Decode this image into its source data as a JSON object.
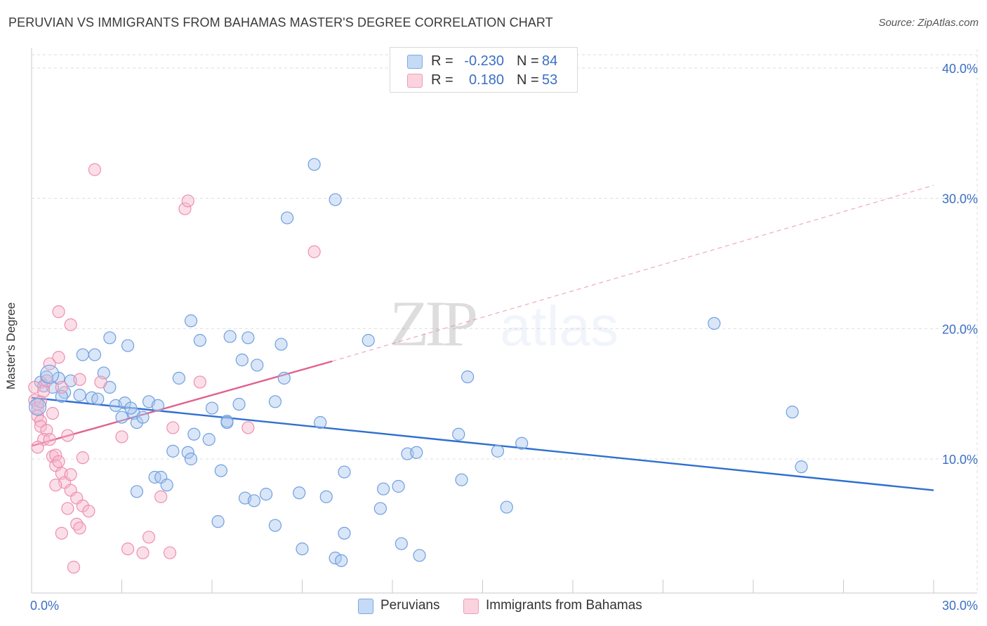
{
  "header": {
    "title": "PERUVIAN VS IMMIGRANTS FROM BAHAMAS MASTER'S DEGREE CORRELATION CHART",
    "source": "Source: ZipAtlas.com"
  },
  "legend": {
    "rows": [
      {
        "r_label": "R =",
        "r_value": "-0.230",
        "n_label": "N =",
        "n_value": "84",
        "color": "#aac8f0"
      },
      {
        "r_label": "R =",
        "r_value": "0.180",
        "n_label": "N =",
        "n_value": "53",
        "color": "#f7b8cb"
      }
    ]
  },
  "bottom_legend": {
    "items": [
      {
        "label": "Peruvians",
        "color": "#aac8f0"
      },
      {
        "label": "Immigrants from Bahamas",
        "color": "#f7b8cb"
      }
    ]
  },
  "watermark": {
    "zip": "ZIP",
    "atlas": "atlas"
  },
  "chart_data": {
    "type": "scatter",
    "title": "PERUVIAN VS IMMIGRANTS FROM BAHAMAS MASTER'S DEGREE CORRELATION CHART",
    "xlabel": "",
    "ylabel": "Master's Degree",
    "xlim": [
      0,
      30
    ],
    "ylim": [
      0,
      40
    ],
    "x_tick_labels": [
      {
        "value": 0,
        "label": "0.0%"
      },
      {
        "value": 30,
        "label": "30.0%"
      }
    ],
    "y_tick_labels": [
      {
        "value": 10,
        "label": "10.0%"
      },
      {
        "value": 20,
        "label": "20.0%"
      },
      {
        "value": 30,
        "label": "30.0%"
      },
      {
        "value": 40,
        "label": "40.0%"
      }
    ],
    "x_minor_ticks": [
      0,
      3,
      6,
      9,
      12,
      15,
      18,
      21,
      24,
      27,
      30
    ],
    "grid": true,
    "series": [
      {
        "name": "Peruvians",
        "color": "#6f9fdf",
        "fill": "#aac8f0",
        "r": -0.23,
        "n": 84,
        "trend": {
          "x0": 0,
          "y0": 14.7,
          "x1": 30,
          "y1": 7.6,
          "style": "solid",
          "color": "#2f6fd0"
        },
        "points": [
          [
            0.2,
            14.2
          ],
          [
            0.3,
            15.9
          ],
          [
            0.4,
            15.6
          ],
          [
            0.5,
            16.3
          ],
          [
            0.7,
            15.5
          ],
          [
            0.9,
            16.2
          ],
          [
            1.1,
            15.1
          ],
          [
            1.0,
            14.8
          ],
          [
            1.3,
            16.0
          ],
          [
            1.7,
            18.0
          ],
          [
            2.1,
            18.0
          ],
          [
            2.4,
            16.6
          ],
          [
            2.0,
            14.7
          ],
          [
            2.2,
            14.6
          ],
          [
            2.6,
            19.3
          ],
          [
            2.6,
            15.5
          ],
          [
            2.8,
            14.1
          ],
          [
            3.0,
            13.2
          ],
          [
            3.1,
            14.3
          ],
          [
            3.2,
            18.7
          ],
          [
            3.4,
            13.5
          ],
          [
            3.5,
            12.8
          ],
          [
            3.7,
            13.2
          ],
          [
            3.9,
            14.4
          ],
          [
            4.2,
            14.1
          ],
          [
            4.1,
            8.6
          ],
          [
            4.3,
            8.6
          ],
          [
            4.5,
            8.0
          ],
          [
            3.5,
            7.5
          ],
          [
            4.7,
            10.6
          ],
          [
            4.9,
            16.2
          ],
          [
            5.2,
            10.5
          ],
          [
            5.3,
            10.0
          ],
          [
            5.3,
            20.6
          ],
          [
            5.6,
            19.1
          ],
          [
            5.4,
            11.9
          ],
          [
            5.9,
            11.5
          ],
          [
            6.0,
            13.9
          ],
          [
            6.3,
            9.1
          ],
          [
            6.2,
            5.2
          ],
          [
            6.5,
            12.9
          ],
          [
            6.9,
            14.2
          ],
          [
            6.6,
            19.4
          ],
          [
            7.0,
            17.6
          ],
          [
            7.1,
            7.0
          ],
          [
            7.2,
            19.3
          ],
          [
            7.5,
            17.2
          ],
          [
            7.4,
            6.8
          ],
          [
            7.8,
            7.3
          ],
          [
            8.1,
            14.4
          ],
          [
            8.1,
            4.9
          ],
          [
            8.3,
            18.8
          ],
          [
            8.4,
            16.2
          ],
          [
            8.5,
            28.5
          ],
          [
            8.9,
            7.4
          ],
          [
            9.0,
            3.1
          ],
          [
            9.4,
            32.6
          ],
          [
            9.6,
            12.8
          ],
          [
            9.8,
            7.1
          ],
          [
            10.1,
            2.4
          ],
          [
            10.3,
            2.2
          ],
          [
            10.4,
            9.0
          ],
          [
            10.4,
            4.3
          ],
          [
            10.1,
            29.9
          ],
          [
            11.2,
            19.1
          ],
          [
            11.6,
            6.2
          ],
          [
            11.7,
            7.7
          ],
          [
            12.2,
            7.9
          ],
          [
            12.3,
            3.5
          ],
          [
            12.5,
            10.4
          ],
          [
            12.8,
            10.5
          ],
          [
            12.9,
            2.6
          ],
          [
            14.2,
            11.9
          ],
          [
            14.3,
            8.4
          ],
          [
            14.5,
            16.3
          ],
          [
            15.5,
            10.6
          ],
          [
            15.8,
            6.3
          ],
          [
            16.3,
            11.2
          ],
          [
            22.7,
            20.4
          ],
          [
            25.3,
            13.6
          ],
          [
            25.6,
            9.4
          ],
          [
            6.5,
            12.8
          ],
          [
            3.3,
            13.9
          ],
          [
            1.6,
            14.9
          ]
        ]
      },
      {
        "name": "Immigrants from Bahamas",
        "color": "#ee8fae",
        "fill": "#f7b8cb",
        "r": 0.18,
        "n": 53,
        "trend": {
          "x0": 0,
          "y0": 11.0,
          "x1": 10.0,
          "y1": 17.5,
          "style": "solid",
          "color": "#e0628d",
          "extension": {
            "x1": 30,
            "y1": 31.0,
            "style": "dashed"
          }
        },
        "points": [
          [
            0.1,
            15.5
          ],
          [
            0.1,
            14.5
          ],
          [
            0.2,
            13.9
          ],
          [
            0.2,
            13.3
          ],
          [
            0.3,
            12.9
          ],
          [
            0.3,
            14.4
          ],
          [
            0.3,
            12.5
          ],
          [
            0.4,
            15.2
          ],
          [
            0.5,
            12.2
          ],
          [
            0.4,
            11.5
          ],
          [
            0.6,
            17.3
          ],
          [
            0.6,
            11.5
          ],
          [
            0.7,
            10.2
          ],
          [
            0.7,
            13.5
          ],
          [
            0.8,
            10.3
          ],
          [
            0.8,
            9.5
          ],
          [
            0.9,
            17.8
          ],
          [
            0.9,
            9.8
          ],
          [
            1.0,
            15.5
          ],
          [
            1.0,
            8.9
          ],
          [
            1.1,
            8.2
          ],
          [
            1.2,
            6.2
          ],
          [
            1.3,
            7.6
          ],
          [
            1.3,
            8.8
          ],
          [
            1.5,
            7.0
          ],
          [
            1.5,
            5.0
          ],
          [
            1.6,
            4.7
          ],
          [
            1.7,
            6.4
          ],
          [
            1.7,
            10.1
          ],
          [
            1.9,
            6.0
          ],
          [
            0.9,
            21.3
          ],
          [
            1.3,
            20.3
          ],
          [
            2.1,
            32.2
          ],
          [
            3.0,
            11.7
          ],
          [
            3.2,
            3.1
          ],
          [
            3.7,
            2.8
          ],
          [
            3.9,
            4.0
          ],
          [
            4.3,
            7.1
          ],
          [
            4.6,
            2.8
          ],
          [
            4.7,
            12.4
          ],
          [
            5.1,
            29.2
          ],
          [
            5.2,
            29.8
          ],
          [
            5.6,
            15.9
          ],
          [
            7.2,
            12.4
          ],
          [
            9.4,
            25.9
          ],
          [
            1.4,
            1.7
          ],
          [
            1.0,
            4.3
          ],
          [
            1.2,
            11.8
          ],
          [
            2.3,
            15.9
          ],
          [
            1.6,
            16.1
          ],
          [
            0.8,
            8.0
          ],
          [
            0.2,
            10.9
          ],
          [
            0.5,
            16.0
          ]
        ]
      }
    ]
  }
}
